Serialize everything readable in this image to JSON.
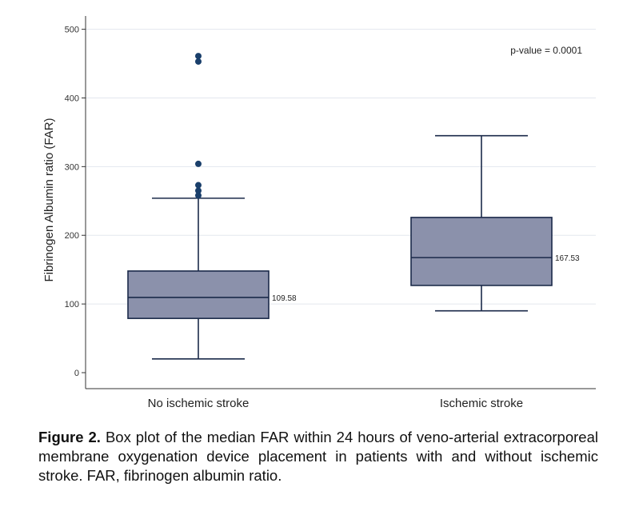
{
  "chart_data": {
    "type": "box",
    "title": "",
    "xlabel": "",
    "ylabel": "Fibrinogen Albumin ratio (FAR)",
    "ylim": [
      -10,
      520
    ],
    "yticks": [
      0,
      100,
      200,
      300,
      400,
      500
    ],
    "ytick_labels": [
      "0",
      "100",
      "200",
      "300",
      "400",
      "500"
    ],
    "grid": true,
    "categories": [
      "No ischemic stroke",
      "Ischemic stroke"
    ],
    "boxes": [
      {
        "name": "No ischemic stroke",
        "whisker_low": 20,
        "q1": 79,
        "median": 109.58,
        "q3": 148,
        "whisker_high": 254,
        "median_label": "109.58",
        "outliers": [
          258,
          265,
          273,
          304,
          453,
          461
        ]
      },
      {
        "name": "Ischemic stroke",
        "whisker_low": 90,
        "q1": 127,
        "median": 167.53,
        "q3": 226,
        "whisker_high": 345,
        "median_label": "167.53",
        "outliers": []
      }
    ],
    "annotation": "p-value = 0.0001",
    "colors": {
      "box_fill": "#8b91ab",
      "box_stroke": "#1b2a4a",
      "outlier": "#1a3f6b",
      "grid": "#e3e7ee"
    }
  },
  "caption": {
    "label": "Figure 2.",
    "text": " Box plot of the median FAR within 24 hours of veno-arterial extracorporeal membrane oxygenation device placement in patients with and without ischemic stroke. FAR, fibrinogen albumin ratio."
  }
}
